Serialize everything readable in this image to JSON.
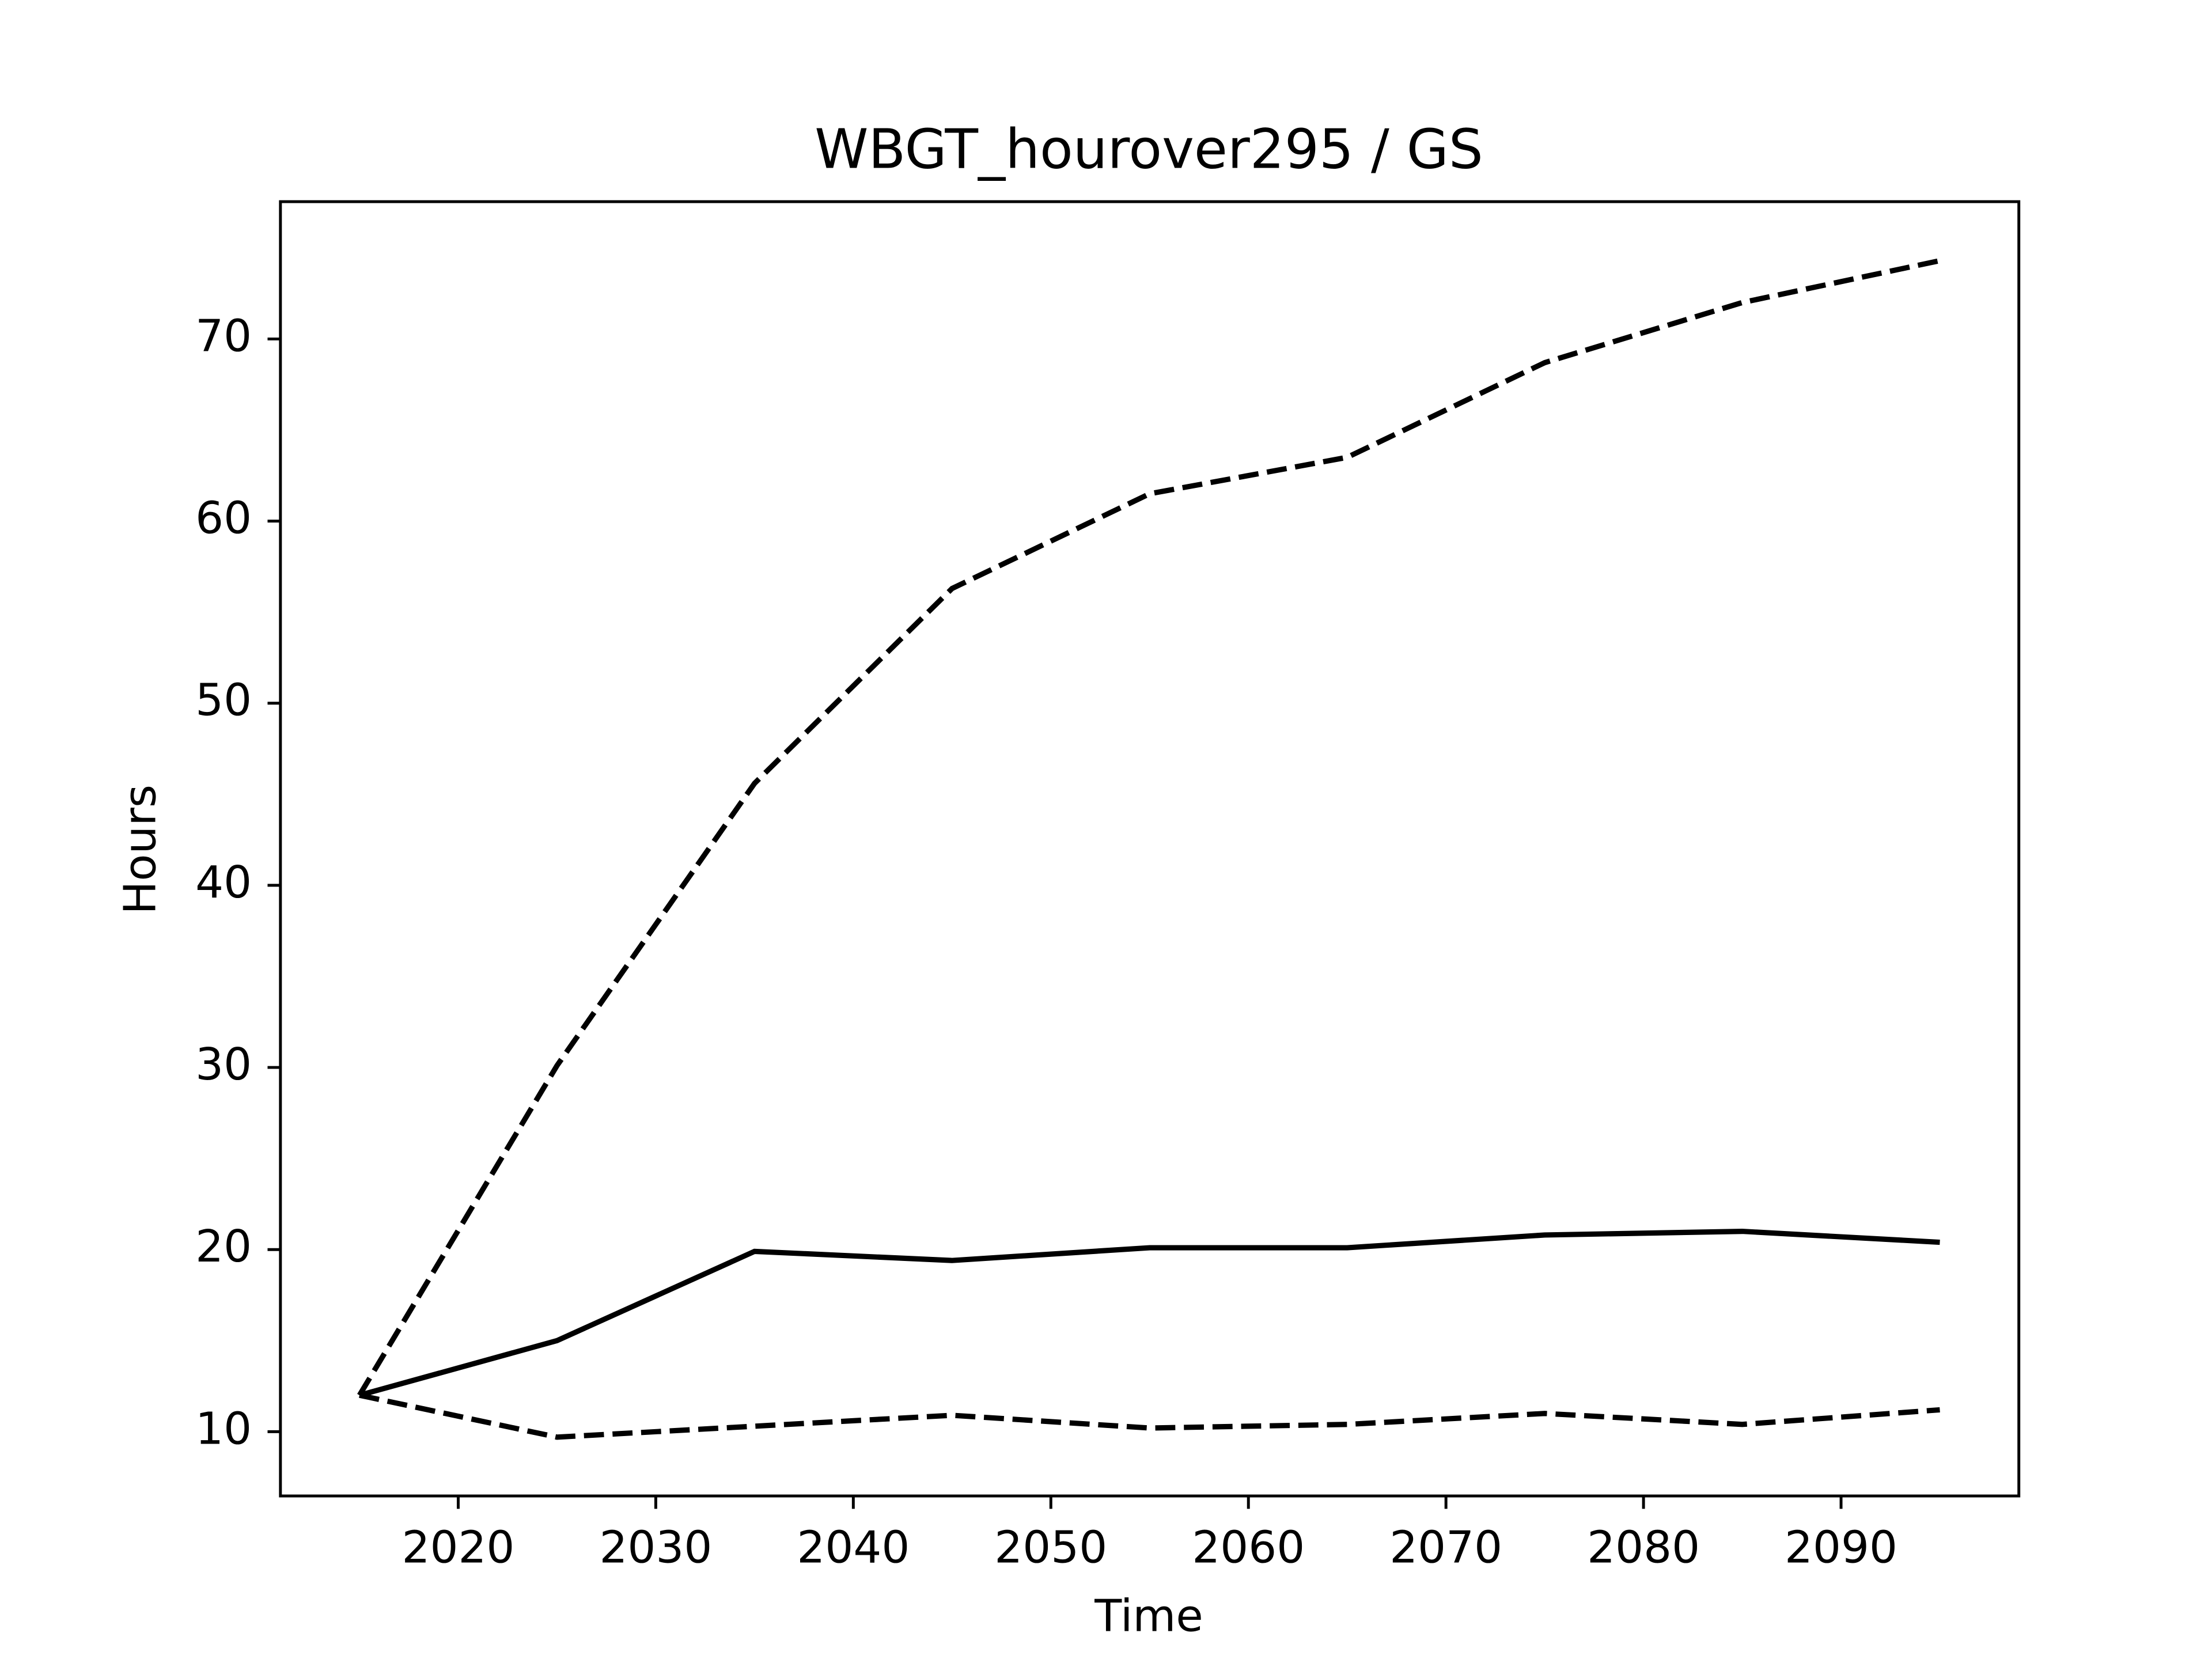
{
  "chart_data": {
    "type": "line",
    "title": "WBGT_hourover295 / GS",
    "xlabel": "Time",
    "ylabel": "Hours",
    "x": [
      2015,
      2025,
      2035,
      2045,
      2055,
      2065,
      2075,
      2085,
      2095
    ],
    "series": [
      {
        "color": "#000000",
        "linestyle": "solid",
        "values": [
          12.0,
          15.0,
          19.9,
          19.4,
          20.1,
          20.1,
          20.8,
          21.0,
          20.4
        ]
      },
      {
        "color": "#000000",
        "linestyle": "dashed",
        "values": [
          12.0,
          30.1,
          45.6,
          56.3,
          61.5,
          63.5,
          68.7,
          72.0,
          74.3
        ]
      },
      {
        "color": "#000000",
        "linestyle": "dashed",
        "values": [
          12.0,
          9.7,
          10.3,
          10.9,
          10.2,
          10.4,
          11.0,
          10.4,
          11.2
        ]
      }
    ],
    "xlim": [
      2011,
      2099
    ],
    "xticks": [
      2020,
      2030,
      2040,
      2050,
      2060,
      2070,
      2080,
      2090
    ],
    "ylim": [
      6.47,
      77.54
    ],
    "yticks": [
      10,
      20,
      30,
      40,
      50,
      60,
      70
    ],
    "grid": false
  }
}
